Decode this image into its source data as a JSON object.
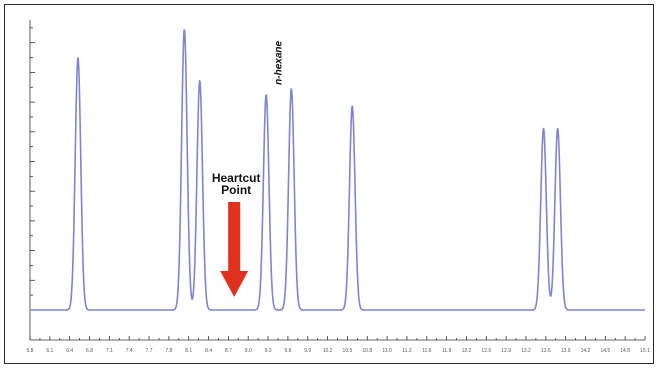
{
  "chart_data": {
    "type": "line",
    "title": "",
    "xlabel": "",
    "ylabel": "",
    "grid": false,
    "x_tick_labels": [
      "5.8",
      "6.1",
      "6.4",
      "6.8",
      "7.1",
      "7.4",
      "7.7",
      "7.8",
      "8.1",
      "8.4",
      "8.7",
      "9.0",
      "9.3",
      "9.6",
      "9.9",
      "10.2",
      "10.5",
      "10.8",
      "11.0",
      "11.2",
      "11.6",
      "11.9",
      "12.2",
      "12.6",
      "12.9",
      "13.2",
      "13.6",
      "13.9",
      "14.2",
      "14.5",
      "14.8",
      "15.1"
    ],
    "xlim": [
      0,
      100
    ],
    "ylim": [
      0,
      100
    ],
    "baseline": 3,
    "peaks": [
      {
        "x": 7.8,
        "height": 92,
        "width": 0.45
      },
      {
        "x": 25.1,
        "height": 102,
        "width": 0.45
      },
      {
        "x": 27.6,
        "height": 84,
        "width": 0.45
      },
      {
        "x": 38.4,
        "height": 79,
        "width": 0.45
      },
      {
        "x": 42.5,
        "height": 81,
        "width": 0.45
      },
      {
        "x": 52.4,
        "height": 75,
        "width": 0.45
      },
      {
        "x": 83.5,
        "height": 67,
        "width": 0.45
      },
      {
        "x": 85.8,
        "height": 67,
        "width": 0.45
      }
    ],
    "peak_labels": [
      {
        "text": "n-hexane",
        "peak_index": 4
      }
    ],
    "annotations": [
      {
        "lines": [
          "Heartcut",
          "Point"
        ],
        "x": 33.2,
        "type": "arrow-down"
      }
    ]
  }
}
